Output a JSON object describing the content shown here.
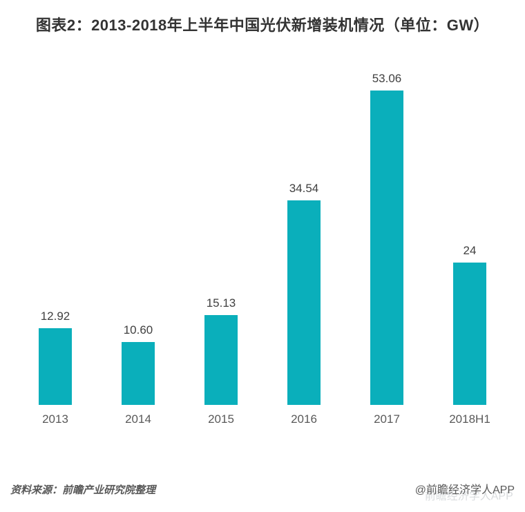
{
  "title": "图表2：2013-2018年上半年中国光伏新增装机情况（单位：GW）",
  "chart_data": {
    "type": "bar",
    "categories": [
      "2013",
      "2014",
      "2015",
      "2016",
      "2017",
      "2018H1"
    ],
    "values": [
      12.92,
      10.6,
      15.13,
      34.54,
      53.06,
      24
    ],
    "value_labels": [
      "12.92",
      "10.60",
      "15.13",
      "34.54",
      "53.06",
      "24"
    ],
    "title": "图表2：2013-2018年上半年中国光伏新增装机情况（单位：GW）",
    "xlabel": "",
    "ylabel": "",
    "unit": "GW",
    "ylim": [
      0,
      56
    ],
    "grid": false,
    "legend": null,
    "bar_color": "#0aafbb"
  },
  "footer": {
    "source": "资料来源：前瞻产业研究院整理",
    "credit": "@前瞻经济学人APP",
    "watermark": "前瞻经济学人APP"
  },
  "colors": {
    "bar": "#0aafbb",
    "title": "#333333",
    "value_label": "#404040",
    "axis_label": "#595959",
    "footer_text": "#595959",
    "watermark": "#d9dcde"
  }
}
